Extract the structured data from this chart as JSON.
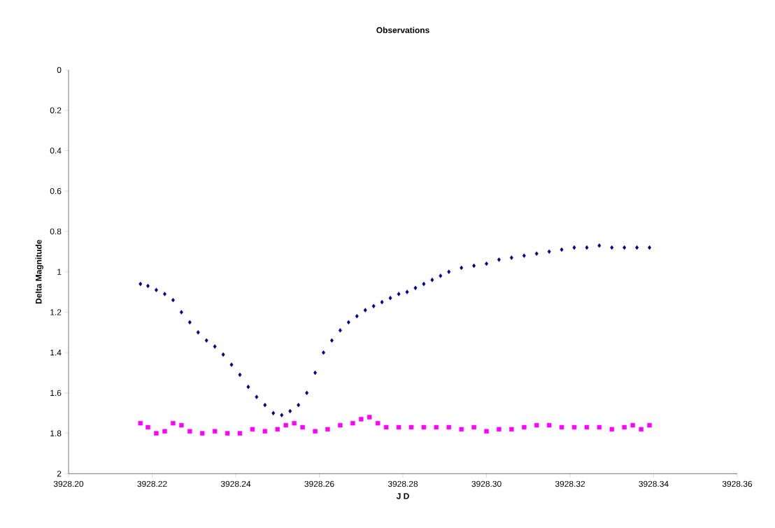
{
  "chart_data": {
    "type": "scatter",
    "title": "Observations",
    "xlabel": "J D",
    "ylabel": "Delta Magnitude",
    "xlim": [
      3928.2,
      3928.36
    ],
    "xticks": [
      {
        "value": 3928.2,
        "label": "3928.20"
      },
      {
        "value": 3928.22,
        "label": "3928.22"
      },
      {
        "value": 3928.24,
        "label": "3928.24"
      },
      {
        "value": 3928.26,
        "label": "3928.26"
      },
      {
        "value": 3928.28,
        "label": "3928.28"
      },
      {
        "value": 3928.3,
        "label": "3928.30"
      },
      {
        "value": 3928.32,
        "label": "3928.32"
      },
      {
        "value": 3928.34,
        "label": "3928.34"
      },
      {
        "value": 3928.36,
        "label": "3928.36"
      }
    ],
    "ylim": [
      2,
      0
    ],
    "yticks": [
      0,
      0.2,
      0.4,
      0.6,
      0.8,
      1,
      1.2,
      1.4,
      1.6,
      1.8,
      2
    ],
    "grid": false,
    "series": [
      {
        "color": "#000080",
        "marker": "diamond",
        "x": [
          3928.2172,
          3928.219,
          3928.221,
          3928.223,
          3928.225,
          3928.227,
          3928.229,
          3928.231,
          3928.233,
          3928.235,
          3928.237,
          3928.239,
          3928.241,
          3928.243,
          3928.245,
          3928.247,
          3928.249,
          3928.251,
          3928.253,
          3928.255,
          3928.257,
          3928.259,
          3928.261,
          3928.263,
          3928.265,
          3928.267,
          3928.269,
          3928.271,
          3928.273,
          3928.275,
          3928.277,
          3928.279,
          3928.281,
          3928.283,
          3928.285,
          3928.287,
          3928.289,
          3928.291,
          3928.294,
          3928.297,
          3928.3,
          3928.303,
          3928.306,
          3928.309,
          3928.312,
          3928.315,
          3928.318,
          3928.321,
          3928.324,
          3928.327,
          3928.33,
          3928.333,
          3928.336,
          3928.339
        ],
        "values": [
          1.06,
          1.07,
          1.09,
          1.11,
          1.14,
          1.2,
          1.25,
          1.3,
          1.34,
          1.37,
          1.41,
          1.46,
          1.51,
          1.57,
          1.62,
          1.66,
          1.7,
          1.71,
          1.69,
          1.66,
          1.6,
          1.5,
          1.4,
          1.34,
          1.29,
          1.25,
          1.22,
          1.19,
          1.17,
          1.15,
          1.13,
          1.11,
          1.1,
          1.08,
          1.06,
          1.04,
          1.02,
          1.0,
          0.98,
          0.97,
          0.96,
          0.94,
          0.93,
          0.92,
          0.91,
          0.9,
          0.89,
          0.88,
          0.88,
          0.87,
          0.88,
          0.88,
          0.88,
          0.88
        ]
      },
      {
        "color": "#ff00ff",
        "marker": "square",
        "x": [
          3928.2172,
          3928.219,
          3928.221,
          3928.223,
          3928.225,
          3928.227,
          3928.229,
          3928.232,
          3928.235,
          3928.238,
          3928.241,
          3928.244,
          3928.247,
          3928.25,
          3928.252,
          3928.254,
          3928.256,
          3928.259,
          3928.262,
          3928.265,
          3928.268,
          3928.27,
          3928.272,
          3928.274,
          3928.276,
          3928.279,
          3928.282,
          3928.285,
          3928.288,
          3928.291,
          3928.294,
          3928.297,
          3928.3,
          3928.303,
          3928.306,
          3928.309,
          3928.312,
          3928.315,
          3928.318,
          3928.321,
          3928.324,
          3928.327,
          3928.33,
          3928.333,
          3928.335,
          3928.337,
          3928.339
        ],
        "values": [
          1.75,
          1.77,
          1.8,
          1.79,
          1.75,
          1.76,
          1.79,
          1.8,
          1.79,
          1.8,
          1.8,
          1.78,
          1.79,
          1.78,
          1.76,
          1.75,
          1.77,
          1.79,
          1.78,
          1.76,
          1.75,
          1.73,
          1.72,
          1.75,
          1.77,
          1.77,
          1.77,
          1.77,
          1.77,
          1.77,
          1.78,
          1.77,
          1.79,
          1.78,
          1.78,
          1.77,
          1.76,
          1.76,
          1.77,
          1.77,
          1.77,
          1.77,
          1.78,
          1.77,
          1.76,
          1.78,
          1.76
        ]
      }
    ]
  }
}
